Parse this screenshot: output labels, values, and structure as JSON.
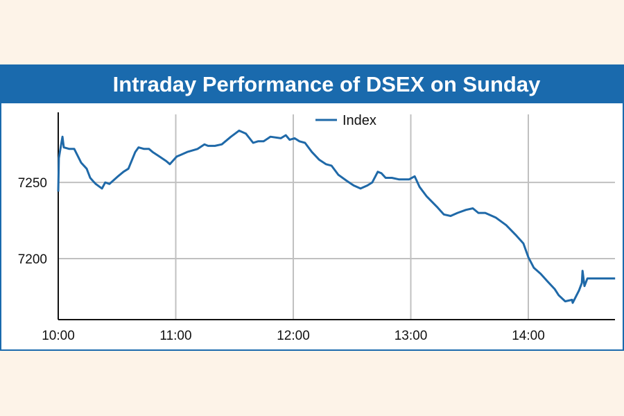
{
  "chart_data": {
    "type": "line",
    "title": "Intraday Performance of DSEX on Sunday",
    "xlabel": "",
    "ylabel": "",
    "x_ticks": [
      "10:00",
      "11:00",
      "12:00",
      "13:00",
      "14:00"
    ],
    "y_ticks": [
      7200,
      7250
    ],
    "ylim": [
      7160,
      7296
    ],
    "xlim": [
      "10:00:00",
      "14:44:20"
    ],
    "grid": true,
    "legend_position": "top-center",
    "colors": {
      "series": "#1f69a8",
      "title_bar": "#1a6aad",
      "background": "#fdf3e8",
      "grid": "#c0c0c0"
    },
    "series": [
      {
        "name": "Index",
        "x": [
          "10:00:00",
          "10:00:20",
          "10:02:10",
          "10:02:50",
          "10:05:40",
          "10:08:10",
          "10:11:40",
          "10:14:30",
          "10:16:20",
          "10:17:40",
          "10:19:10",
          "10:22:20",
          "10:24:00",
          "10:26:10",
          "10:30:30",
          "10:33:20",
          "10:35:50",
          "10:39:20",
          "10:41:00",
          "10:43:50",
          "10:46:20",
          "10:48:10",
          "10:51:40",
          "10:55:10",
          "10:57:00",
          "11:00:30",
          "11:02:20",
          "11:05:50",
          "11:11:10",
          "11:14:40",
          "11:16:30",
          "11:20:00",
          "11:23:30",
          "11:28:10",
          "11:32:20",
          "11:35:50",
          "11:39:30",
          "11:42:00",
          "11:44:50",
          "11:48:20",
          "11:53:40",
          "11:56:10",
          "11:58:10",
          "12:00:40",
          "12:03:10",
          "12:06:00",
          "12:09:30",
          "12:13:10",
          "12:16:40",
          "12:19:30",
          "12:23:00",
          "12:27:20",
          "12:30:50",
          "12:34:20",
          "12:37:50",
          "12:40:20",
          "12:43:10",
          "12:45:00",
          "12:47:10",
          "12:50:20",
          "12:53:50",
          "12:59:10",
          "13:02:00",
          "13:04:30",
          "13:08:00",
          "13:13:20",
          "13:16:50",
          "13:20:20",
          "13:23:50",
          "13:28:10",
          "13:31:40",
          "13:34:30",
          "13:38:00",
          "13:43:20",
          "13:48:40",
          "13:54:00",
          "13:57:30",
          "14:00:00",
          "14:02:50",
          "14:06:20",
          "14:09:50",
          "14:13:30",
          "14:15:30",
          "14:18:50",
          "14:22:20",
          "14:22:40",
          "14:25:50",
          "14:27:20",
          "14:27:40",
          "14:28:40",
          "14:30:10",
          "14:44:20"
        ],
        "values": [
          7244,
          7266,
          7280,
          7273,
          7272,
          7272,
          7263,
          7259,
          7253,
          7251,
          7249,
          7246,
          7250,
          7249,
          7254,
          7257,
          7259,
          7270,
          7273,
          7272,
          7272,
          7270,
          7267,
          7264,
          7262,
          7267,
          7268,
          7270,
          7272,
          7275,
          7274,
          7274,
          7275,
          7280,
          7284,
          7282,
          7276,
          7277,
          7277,
          7280,
          7279,
          7281,
          7278,
          7279,
          7277,
          7276,
          7270,
          7265,
          7262,
          7261,
          7255,
          7251,
          7248,
          7246,
          7248,
          7250,
          7257,
          7256,
          7253,
          7253,
          7252,
          7252,
          7254,
          7247,
          7241,
          7234,
          7229,
          7228,
          7230,
          7232,
          7233,
          7230,
          7230,
          7227,
          7222,
          7215,
          7210,
          7201,
          7194,
          7190,
          7185,
          7180,
          7176,
          7172,
          7173,
          7171,
          7179,
          7184,
          7192,
          7182,
          7187,
          7187
        ]
      }
    ]
  }
}
